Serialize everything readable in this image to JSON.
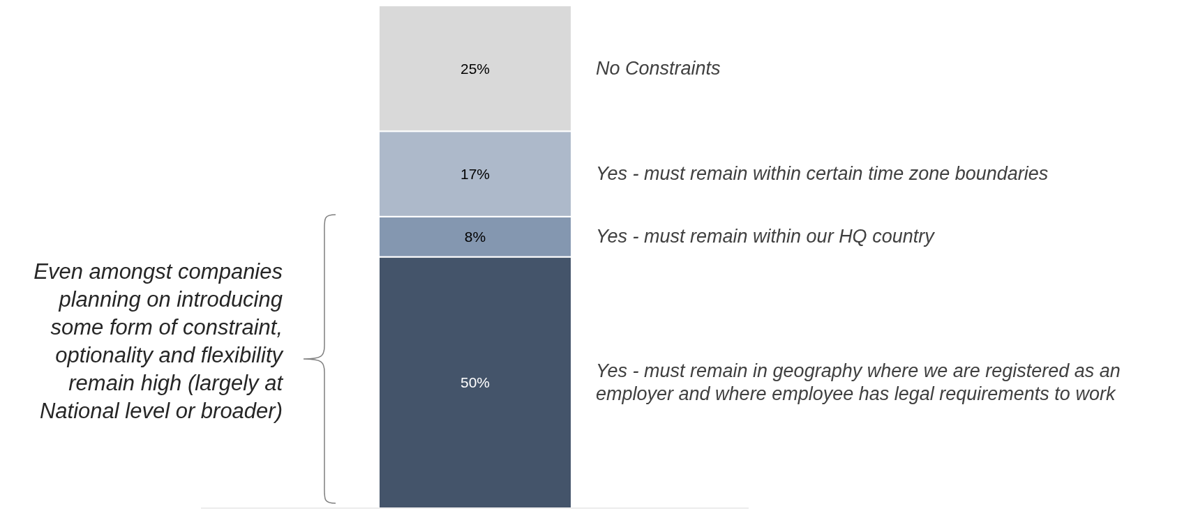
{
  "chart_data": {
    "type": "bar",
    "stacked": true,
    "categories": [
      null
    ],
    "series": [
      {
        "name": "Yes - must remain in geography where we are registered as an employer and where employee has legal requirements to work",
        "color": "#44546a",
        "values": [
          50
        ],
        "value_labels": [
          "50%"
        ]
      },
      {
        "name": "Yes - must remain within our HQ country",
        "color": "#8497b0",
        "values": [
          8
        ],
        "value_labels": [
          "8%"
        ]
      },
      {
        "name": "Yes - must remain within certain time zone boundaries",
        "color": "#adb9ca",
        "values": [
          17
        ],
        "value_labels": [
          "17%"
        ]
      },
      {
        "name": "No Constraints",
        "color": "#d9d9d9",
        "values": [
          25
        ],
        "value_labels": [
          "25%"
        ]
      }
    ],
    "annotations": [
      "Even amongst companies planning on introducing some form of constraint, optionality and flexibility remain high (largely at National level or broader)"
    ]
  }
}
